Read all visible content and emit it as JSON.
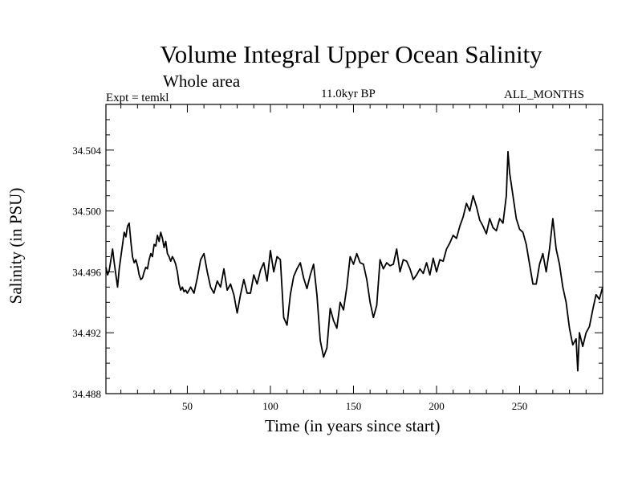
{
  "header": {
    "title": "Volume Integral Upper Ocean Salinity",
    "subtitle": "Whole area",
    "experiment": "Expt = temkl",
    "period": "11.0kyr BP",
    "months": "ALL_MONTHS"
  },
  "chart_data": {
    "type": "line",
    "title": "Volume Integral Upper Ocean Salinity",
    "subtitle": "Whole area",
    "xlabel": "Time (in years since start)",
    "ylabel": "Salinity (in PSU)",
    "xlim": [
      1,
      300
    ],
    "ylim": [
      34.488,
      34.507
    ],
    "xticks": [
      50,
      100,
      150,
      200,
      250
    ],
    "yticks": [
      34.488,
      34.492,
      34.496,
      34.5,
      34.504
    ],
    "ytick_labels": [
      "34.488",
      "34.492",
      "34.496",
      "34.500",
      "34.504"
    ],
    "grid": false,
    "series": [
      {
        "name": "salinity",
        "x": [
          1,
          2,
          3,
          4,
          5,
          6,
          7,
          8,
          9,
          10,
          11,
          12,
          13,
          14,
          15,
          16,
          17,
          18,
          19,
          20,
          21,
          22,
          23,
          24,
          25,
          26,
          27,
          28,
          29,
          30,
          31,
          32,
          33,
          34,
          35,
          36,
          37,
          38,
          39,
          40,
          41,
          42,
          43,
          44,
          45,
          46,
          47,
          48,
          49,
          50,
          52,
          54,
          56,
          58,
          60,
          62,
          64,
          66,
          68,
          70,
          72,
          74,
          76,
          78,
          80,
          82,
          84,
          86,
          88,
          90,
          92,
          94,
          96,
          98,
          100,
          102,
          104,
          106,
          108,
          110,
          112,
          114,
          116,
          118,
          120,
          122,
          124,
          126,
          128,
          130,
          132,
          134,
          136,
          138,
          140,
          142,
          144,
          146,
          148,
          150,
          152,
          154,
          156,
          158,
          160,
          162,
          164,
          166,
          168,
          170,
          172,
          174,
          176,
          178,
          180,
          182,
          184,
          186,
          188,
          190,
          192,
          194,
          196,
          198,
          200,
          202,
          204,
          206,
          208,
          210,
          212,
          214,
          216,
          218,
          220,
          222,
          224,
          226,
          228,
          230,
          232,
          234,
          236,
          238,
          240,
          242,
          243,
          244,
          246,
          248,
          250,
          252,
          254,
          256,
          258,
          260,
          262,
          264,
          266,
          268,
          270,
          272,
          274,
          276,
          278,
          280,
          282,
          284,
          285,
          286,
          288,
          290,
          292,
          294,
          296,
          298,
          300
        ],
        "values": [
          34.4963,
          34.4958,
          34.4961,
          34.4968,
          34.4975,
          34.4966,
          34.4958,
          34.495,
          34.4962,
          34.497,
          34.4978,
          34.4986,
          34.4983,
          34.499,
          34.4992,
          34.498,
          34.497,
          34.4966,
          34.4968,
          34.4964,
          34.4958,
          34.4955,
          34.4956,
          34.496,
          34.4963,
          34.4962,
          34.4968,
          34.4972,
          34.497,
          34.4978,
          34.4977,
          34.4984,
          34.498,
          34.4986,
          34.4982,
          34.4976,
          34.498,
          34.4972,
          34.497,
          34.4967,
          34.497,
          34.4968,
          34.4965,
          34.496,
          34.4952,
          34.4948,
          34.495,
          34.4947,
          34.4948,
          34.4946,
          34.495,
          34.4946,
          34.4956,
          34.4968,
          34.4972,
          34.496,
          34.495,
          34.4946,
          34.4954,
          34.495,
          34.4962,
          34.4948,
          34.4952,
          34.4945,
          34.4933,
          34.4945,
          34.4955,
          34.4946,
          34.4946,
          34.4958,
          34.4952,
          34.4961,
          34.4966,
          34.4954,
          34.4974,
          34.496,
          34.497,
          34.4968,
          34.493,
          34.4925,
          34.4945,
          34.4957,
          34.4962,
          34.4966,
          34.4956,
          34.4949,
          34.4958,
          34.4965,
          34.4945,
          34.4915,
          34.4904,
          34.491,
          34.4936,
          34.4928,
          34.4923,
          34.494,
          34.4935,
          34.495,
          34.497,
          34.4965,
          34.4972,
          34.4966,
          34.4965,
          34.4955,
          34.494,
          34.493,
          34.4938,
          34.4968,
          34.4962,
          34.4966,
          34.4964,
          34.4965,
          34.4975,
          34.496,
          34.4968,
          34.4967,
          34.4962,
          34.4955,
          34.4958,
          34.4962,
          34.4959,
          34.4966,
          34.4958,
          34.4969,
          34.496,
          34.4968,
          34.4967,
          34.4975,
          34.4979,
          34.4984,
          34.4982,
          34.499,
          34.4996,
          34.5005,
          34.5,
          34.501,
          34.5003,
          34.4994,
          34.499,
          34.4985,
          34.4995,
          34.4989,
          34.4987,
          34.4995,
          34.4992,
          34.501,
          34.5039,
          34.5025,
          34.501,
          34.4995,
          34.4988,
          34.4986,
          34.4978,
          34.4965,
          34.4952,
          34.4952,
          34.4965,
          34.4972,
          34.496,
          34.4975,
          34.4995,
          34.4975,
          34.4965,
          34.495,
          34.494,
          34.4923,
          34.4912,
          34.4916,
          34.4895,
          34.492,
          34.4911,
          34.492,
          34.4924,
          34.4935,
          34.4945,
          34.4942,
          34.495
        ]
      }
    ]
  }
}
